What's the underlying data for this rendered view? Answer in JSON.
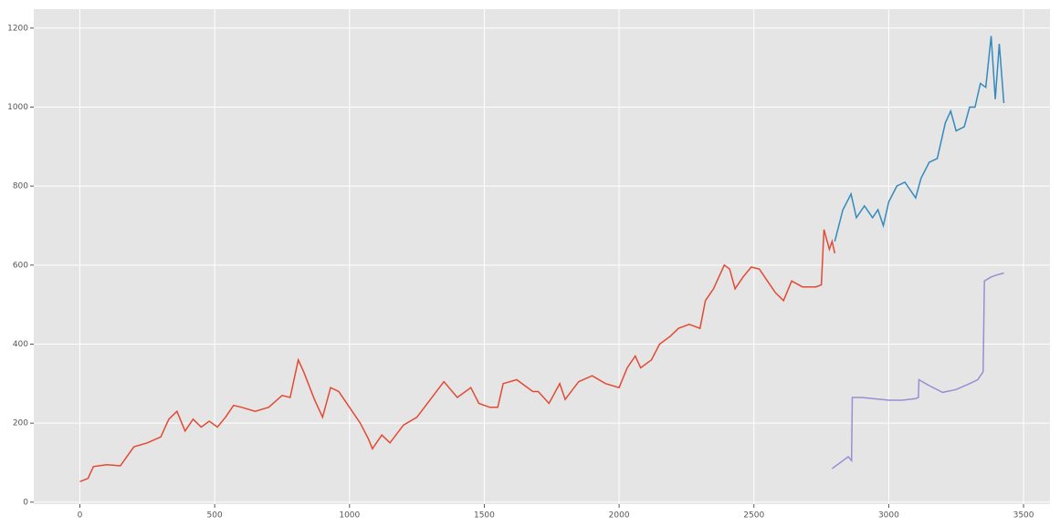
{
  "chart_data": {
    "type": "line",
    "background": "#E5E5E5",
    "grid": true,
    "xlim": [
      -171,
      3598
    ],
    "ylim": [
      -5,
      1248
    ],
    "xticks": [
      0,
      500,
      1000,
      1500,
      2000,
      2500,
      3000,
      3500
    ],
    "yticks": [
      0,
      200,
      400,
      600,
      800,
      1000,
      1200
    ],
    "series": [
      {
        "color": "#E24A33",
        "x": [
          0,
          30,
          50,
          100,
          150,
          200,
          250,
          300,
          330,
          360,
          390,
          420,
          450,
          480,
          510,
          540,
          570,
          600,
          650,
          700,
          750,
          780,
          810,
          830,
          870,
          900,
          930,
          960,
          1000,
          1040,
          1070,
          1085,
          1120,
          1150,
          1200,
          1250,
          1300,
          1350,
          1400,
          1450,
          1480,
          1520,
          1550,
          1570,
          1620,
          1680,
          1700,
          1740,
          1780,
          1800,
          1850,
          1900,
          1950,
          2000,
          2030,
          2060,
          2080,
          2120,
          2150,
          2190,
          2220,
          2260,
          2300,
          2320,
          2350,
          2390,
          2410,
          2430,
          2460,
          2490,
          2520,
          2550,
          2580,
          2610,
          2640,
          2680,
          2730,
          2750,
          2760,
          2780,
          2790,
          2800
        ],
        "values": [
          52,
          60,
          90,
          95,
          92,
          140,
          150,
          165,
          210,
          230,
          180,
          210,
          190,
          205,
          190,
          215,
          245,
          240,
          230,
          240,
          270,
          265,
          360,
          330,
          260,
          215,
          290,
          280,
          240,
          200,
          160,
          135,
          170,
          150,
          195,
          215,
          260,
          305,
          265,
          290,
          250,
          240,
          240,
          300,
          310,
          280,
          280,
          250,
          300,
          260,
          305,
          320,
          300,
          290,
          340,
          370,
          340,
          360,
          400,
          420,
          440,
          450,
          440,
          510,
          540,
          600,
          590,
          540,
          570,
          595,
          590,
          560,
          530,
          510,
          560,
          545,
          545,
          550,
          690,
          640,
          660,
          630
        ]
      },
      {
        "color": "#348ABD",
        "x": [
          2800,
          2830,
          2860,
          2880,
          2910,
          2940,
          2960,
          2980,
          3000,
          3030,
          3060,
          3080,
          3100,
          3120,
          3150,
          3180,
          3210,
          3230,
          3250,
          3280,
          3300,
          3320,
          3340,
          3360,
          3380,
          3395,
          3410,
          3427
        ],
        "values": [
          660,
          740,
          780,
          720,
          750,
          720,
          740,
          700,
          760,
          800,
          810,
          790,
          770,
          820,
          860,
          870,
          960,
          990,
          940,
          950,
          1000,
          1000,
          1060,
          1050,
          1180,
          1020,
          1160,
          1010
        ]
      },
      {
        "color": "#988ED5",
        "x": [
          2790,
          2830,
          2850,
          2862,
          2865,
          2900,
          3000,
          3050,
          3100,
          3110,
          3112,
          3150,
          3200,
          3250,
          3300,
          3330,
          3350,
          3355,
          3380,
          3400,
          3427
        ],
        "values": [
          85,
          105,
          115,
          105,
          265,
          265,
          258,
          258,
          262,
          265,
          310,
          295,
          278,
          285,
          300,
          310,
          330,
          560,
          570,
          575,
          580
        ]
      }
    ]
  }
}
